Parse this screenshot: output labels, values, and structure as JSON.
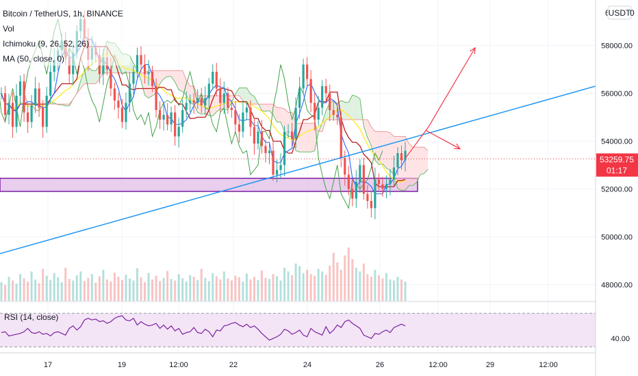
{
  "legend": {
    "symbol": "Bitcoin / TetherUS, 1h, BINANCE",
    "vol": "Vol",
    "ichimoku": "Ichimoku (9, 26, 52, 26)",
    "ma": "MA (50, close, 0)",
    "rsi": "RSI (14, close)"
  },
  "currency": "USDT",
  "top_label_partial": "6",
  "price": {
    "current": "53259.75",
    "countdown": "01:17",
    "value": 53259.75
  },
  "colors": {
    "price_tag": "#f23645",
    "trendline": "#2196f3",
    "zone_fill": "#e1bee7",
    "zone_border": "#7b1fa2",
    "arrow": "#f23645",
    "rsi_line": "#7b1fa2",
    "rsi_band": "#f3e5f5",
    "candle_up": "#26a69a",
    "candle_down": "#ef5350",
    "tenkan": "#2962ff",
    "kijun": "#b71c1c",
    "chikou": "#43a047",
    "ma": "#ffeb3b"
  },
  "chart_data": {
    "type": "line",
    "title": "Bitcoin / TetherUS, 1h, BINANCE",
    "y_axis": {
      "ticks": [
        "58000.00",
        "56000.00",
        "54000.00",
        "52000.00",
        "50000.00",
        "48000.00"
      ],
      "tick_values": [
        58000,
        56000,
        54000,
        52000,
        50000,
        48000
      ],
      "range": [
        47300,
        59900
      ]
    },
    "x_axis": {
      "ticks": [
        "17",
        "19",
        "12:00",
        "22",
        "24",
        "26",
        "12:00",
        "29",
        "12:00"
      ]
    },
    "rsi_axis": {
      "ticks": [
        "40.00"
      ],
      "tick_values": [
        40
      ],
      "band": [
        30,
        70
      ]
    },
    "annotations": {
      "support_zone": {
        "low": 51900,
        "high": 52450
      },
      "trendline": {
        "price_start": 49300,
        "price_end": 56300
      },
      "arrows": [
        {
          "name": "bullish",
          "from_price": 53280,
          "to_price": 57900
        },
        {
          "name": "bearish",
          "from_price": 54450,
          "to_price": 53680
        }
      ]
    },
    "series": [
      {
        "name": "price",
        "values": [
          56000,
          55100,
          55600,
          54600,
          55900,
          56500,
          55200,
          54800,
          55500,
          56200,
          55400,
          54600,
          55900,
          56900,
          57400,
          57800,
          58200,
          57500,
          56800,
          57700,
          58600,
          59100,
          58300,
          57400,
          57900,
          57600,
          56800,
          57500,
          57000,
          56200,
          55700,
          55400,
          54800,
          55600,
          56400,
          56900,
          57600,
          57200,
          56800,
          56900,
          56300,
          55300,
          54900,
          55100,
          54700,
          55200,
          54200,
          54600,
          55300,
          55600,
          55700,
          55600,
          55800,
          55500,
          55800,
          56400,
          56900,
          56200,
          55600,
          56000,
          55400,
          55300,
          54700,
          54400,
          55200,
          55400,
          54600,
          53900,
          54400,
          53800,
          53500,
          53600,
          52600,
          52800,
          53000,
          54400,
          54400,
          54100,
          55400,
          56200,
          57200,
          56600,
          55600,
          54900,
          55400,
          56300,
          56000,
          55300,
          55100,
          55000,
          53300,
          52600,
          52000,
          51600,
          52300,
          53000,
          51800,
          51500,
          51200,
          52400,
          52200,
          52000,
          52200,
          52400,
          52900,
          53500,
          53200,
          53600
        ]
      },
      {
        "name": "Vol",
        "values": [
          0.35,
          0.3,
          0.45,
          0.38,
          0.32,
          0.5,
          0.42,
          0.36,
          0.55,
          0.4,
          0.33,
          0.6,
          0.47,
          0.39,
          0.52,
          0.44,
          0.35,
          0.62,
          0.41,
          0.38,
          0.48,
          0.55,
          0.37,
          0.43,
          0.5,
          0.34,
          0.46,
          0.58,
          0.4,
          0.36,
          0.53,
          0.45,
          0.39,
          0.49,
          0.42,
          0.38,
          0.61,
          0.44,
          0.35,
          0.52,
          0.4,
          0.47,
          0.37,
          0.43,
          0.56,
          0.41,
          0.38,
          0.5,
          0.42,
          0.36,
          0.48,
          0.45,
          0.39,
          0.6,
          0.43,
          0.37,
          0.52,
          0.46,
          0.4,
          0.55,
          0.42,
          0.38,
          0.47,
          0.44,
          0.36,
          0.51,
          0.4,
          0.45,
          0.39,
          0.57,
          0.43,
          0.41,
          0.5,
          0.46,
          0.38,
          0.62,
          0.55,
          0.48,
          0.7,
          0.65,
          0.52,
          0.58,
          0.5,
          0.47,
          0.6,
          0.55,
          0.49,
          0.66,
          0.9,
          0.72,
          0.58,
          0.85,
          1.0,
          0.78,
          0.62,
          0.55,
          0.7,
          0.5,
          0.45,
          0.58,
          0.48,
          0.42,
          0.52,
          0.4,
          0.38,
          0.45,
          0.4,
          0.36
        ]
      },
      {
        "name": "RSI (14, close)",
        "values": [
          47,
          48,
          43,
          44,
          45,
          46,
          48,
          52,
          47,
          46,
          48,
          45,
          46,
          43,
          47,
          48,
          46,
          44,
          52,
          55,
          50,
          54,
          62,
          64,
          62,
          63,
          60,
          61,
          58,
          60,
          64,
          66,
          67,
          62,
          61,
          64,
          56,
          60,
          57,
          55,
          56,
          58,
          52,
          56,
          51,
          55,
          49,
          52,
          45,
          47,
          48,
          53,
          47,
          46,
          51,
          48,
          42,
          50,
          49,
          55,
          56,
          58,
          59,
          56,
          54,
          57,
          53,
          55,
          51,
          46,
          42,
          38,
          40,
          42,
          45,
          51,
          49,
          45,
          47,
          50,
          44,
          42,
          52,
          48,
          46,
          44,
          54,
          46,
          50,
          56,
          53,
          60,
          62,
          58,
          55,
          52,
          44,
          42,
          40,
          46,
          45,
          48,
          50,
          47,
          53,
          55,
          57,
          55
        ]
      }
    ]
  }
}
